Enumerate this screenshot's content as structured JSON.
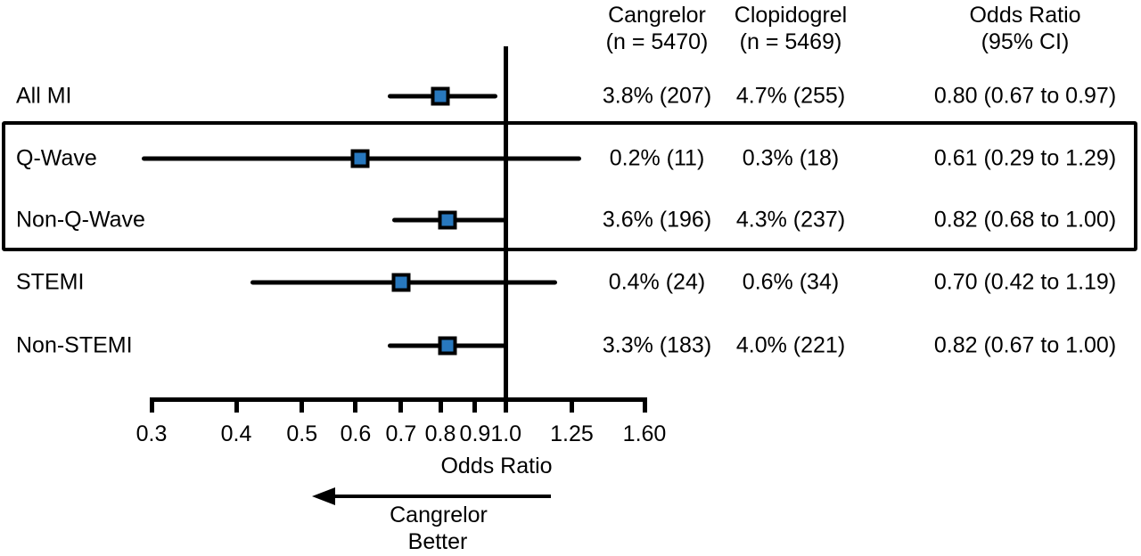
{
  "table": {
    "columns": [
      {
        "title": "Cangrelor",
        "subtitle": "(n = 5470)"
      },
      {
        "title": "Clopidogrel",
        "subtitle": "(n = 5469)"
      },
      {
        "title": "Odds Ratio",
        "subtitle": "(95% CI)"
      }
    ]
  },
  "chart_data": {
    "type": "scatter",
    "variant": "forest-plot",
    "xlabel": "Odds Ratio",
    "x_scale": "log",
    "xlim": [
      0.3,
      1.6
    ],
    "reference_line": 1.0,
    "x_ticks": [
      0.3,
      0.4,
      0.5,
      0.6,
      0.7,
      0.8,
      0.9,
      1.0,
      1.25,
      1.6
    ],
    "x_tick_labels": [
      "0.3",
      "0.4",
      "0.5",
      "0.6",
      "0.7",
      "0.8",
      "0.9",
      "1.0",
      "1.25",
      "1.60"
    ],
    "direction_label": [
      "Cangrelor",
      "Better"
    ],
    "highlight_box_rows": [
      "Q-Wave",
      "Non-Q-Wave"
    ],
    "rows": [
      {
        "label": "All MI",
        "cangrelor": "3.8% (207)",
        "clopidogrel": "4.7% (255)",
        "or_text": "0.80 (0.67 to 0.97)",
        "or": 0.8,
        "ci_low": 0.67,
        "ci_high": 0.97
      },
      {
        "label": "Q-Wave",
        "cangrelor": "0.2% (11)",
        "clopidogrel": "0.3% (18)",
        "or_text": "0.61 (0.29 to 1.29)",
        "or": 0.61,
        "ci_low": 0.29,
        "ci_high": 1.29
      },
      {
        "label": "Non-Q-Wave",
        "cangrelor": "3.6% (196)",
        "clopidogrel": "4.3% (237)",
        "or_text": "0.82 (0.68 to 1.00)",
        "or": 0.82,
        "ci_low": 0.68,
        "ci_high": 1.0
      },
      {
        "label": "STEMI",
        "cangrelor": "0.4% (24)",
        "clopidogrel": "0.6% (34)",
        "or_text": "0.70 (0.42 to 1.19)",
        "or": 0.7,
        "ci_low": 0.42,
        "ci_high": 1.19
      },
      {
        "label": "Non-STEMI",
        "cangrelor": "3.3% (183)",
        "clopidogrel": "4.0% (221)",
        "or_text": "0.82 (0.67 to 1.00)",
        "or": 0.82,
        "ci_low": 0.67,
        "ci_high": 1.0
      }
    ],
    "marker_color": "#2878BE",
    "line_color": "#000000"
  }
}
